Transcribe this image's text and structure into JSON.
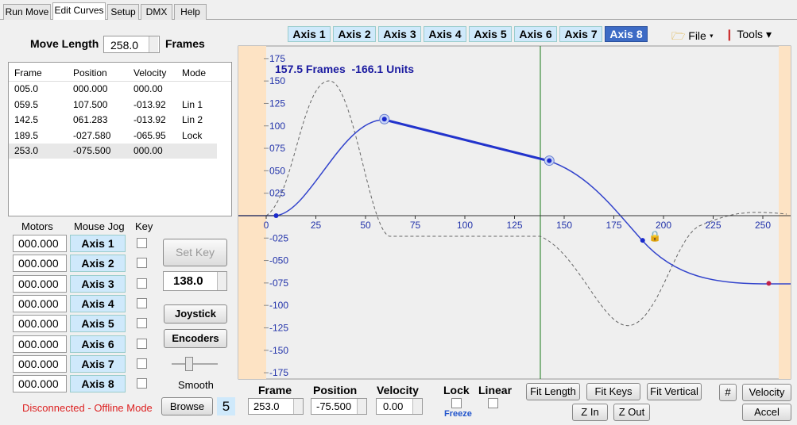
{
  "tabs": [
    "Run Move",
    "Edit Curves",
    "Setup",
    "DMX",
    "Help"
  ],
  "move_length": {
    "label": "Move Length",
    "value": "258.0",
    "unit": "Frames"
  },
  "key_table": {
    "headers": [
      "Frame",
      "Position",
      "Velocity",
      "Mode"
    ],
    "rows": [
      [
        "005.0",
        "000.000",
        "000.00"
      ],
      [
        "059.5",
        "107.500",
        "-013.92",
        "Lin 1"
      ],
      [
        "142.5",
        "061.283",
        "-013.92",
        "Lin 2"
      ],
      [
        "189.5",
        "-027.580",
        "-065.95",
        "Lock"
      ],
      [
        "253.0",
        "-075.500",
        "000.00"
      ]
    ]
  },
  "motors": {
    "headers": [
      "Motors",
      "Mouse Jog",
      "Key"
    ],
    "rows": [
      {
        "value": "000.000",
        "axis": "Axis 1"
      },
      {
        "value": "000.000",
        "axis": "Axis 2"
      },
      {
        "value": "000.000",
        "axis": "Axis 3"
      },
      {
        "value": "000.000",
        "axis": "Axis 4"
      },
      {
        "value": "000.000",
        "axis": "Axis 5"
      },
      {
        "value": "000.000",
        "axis": "Axis 6"
      },
      {
        "value": "000.000",
        "axis": "Axis 7"
      },
      {
        "value": "000.000",
        "axis": "Axis 8"
      }
    ]
  },
  "set_key": "Set Key",
  "key_frame": "138.0",
  "joystick": "Joystick",
  "encoders": "Encoders",
  "smooth": "Smooth",
  "status": "Disconnected - Offline Mode",
  "browse": "Browse",
  "count": "5",
  "axis_tabs": [
    "Axis 1",
    "Axis 2",
    "Axis 3",
    "Axis 4",
    "Axis 5",
    "Axis 6",
    "Axis 7",
    "Axis 8"
  ],
  "selected_axis": 7,
  "menu": {
    "file": "File",
    "tools": "Tools"
  },
  "graph": {
    "readout": "157.5 Frames  -166.1 Units",
    "xlim": [
      -14,
      264
    ],
    "ylim": [
      -182,
      189
    ],
    "xticks": [
      0,
      25,
      50,
      75,
      100,
      125,
      150,
      175,
      200,
      225,
      250
    ],
    "yticks": [
      175,
      150,
      125,
      {
        "value": 100,
        "label": "100"
      },
      {
        "value": 75,
        "label": "075"
      },
      {
        "value": 50,
        "label": "050"
      },
      {
        "value": 25,
        "label": "025"
      },
      {
        "value": -25,
        "label": "-025"
      },
      {
        "value": -50,
        "label": "-050"
      },
      {
        "value": -75,
        "label": "-075"
      },
      -100,
      -125,
      -150,
      -175
    ],
    "keys": {
      "frame": [
        5,
        59.5,
        142.5,
        189.5,
        253
      ],
      "position": [
        0,
        107.5,
        61.283,
        -27.58,
        -75.5
      ]
    }
  },
  "bottom": {
    "frame_label": "Frame",
    "frame": "253.0",
    "position_label": "Position",
    "position": "-75.500",
    "velocity_label": "Velocity",
    "velocity": "0.00",
    "lock": "Lock",
    "linear": "Linear",
    "freeze": "Freeze"
  },
  "buttons": {
    "fit_length": "Fit Length",
    "fit_keys": "Fit Keys",
    "fit_vertical": "Fit Vertical",
    "z_in": "Z In",
    "z_out": "Z Out",
    "hash": "#",
    "velocity": "Velocity",
    "accel": "Accel"
  }
}
